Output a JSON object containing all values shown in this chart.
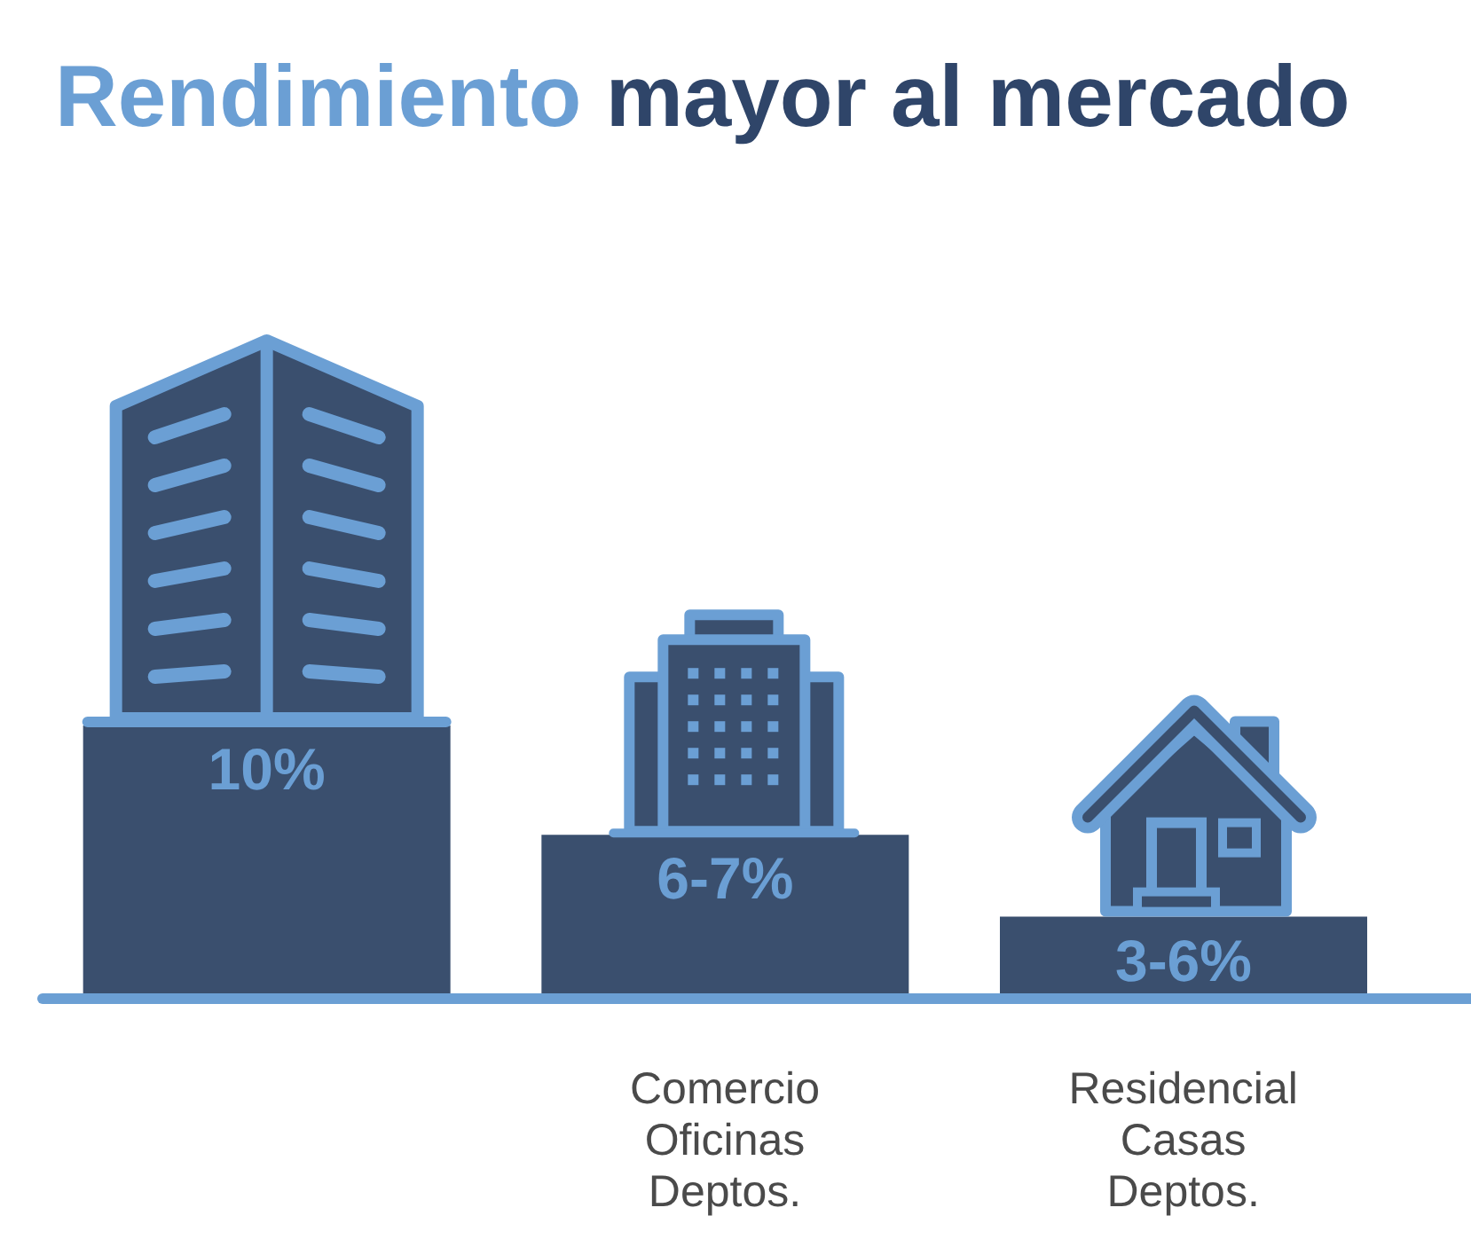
{
  "chart_data": {
    "type": "bar",
    "title": "Rendimiento mayor al mercado",
    "categories": [
      null,
      "Comercio\nOficinas\nDeptos.",
      "Residencial\nCasas\nDeptos."
    ],
    "values": [
      10,
      6,
      3
    ],
    "color": "#3a4f6e",
    "tick_labels": "x",
    "value_labels": [
      "10%",
      "6-7%",
      "3-6%"
    ]
  }
}
